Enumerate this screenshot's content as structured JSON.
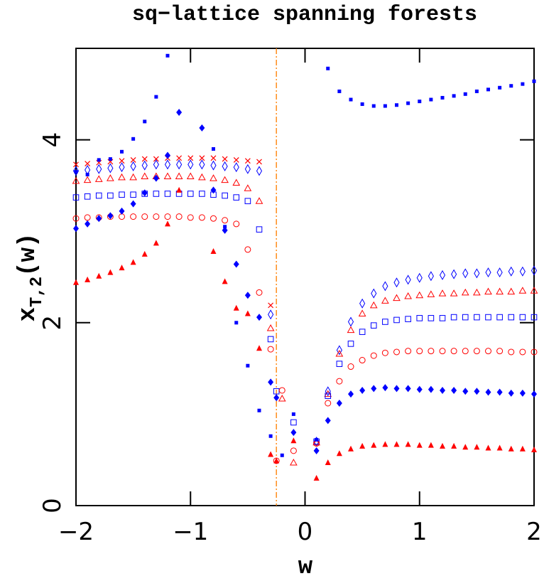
{
  "chart_data": {
    "type": "scatter",
    "title": "sq−lattice spanning forests",
    "xlabel": "w",
    "ylabel": "x",
    "ylabel_sub": "T,2",
    "ylabel_suffix": "(w)",
    "xlim": [
      -2,
      2
    ],
    "ylim": [
      0,
      5
    ],
    "xticks": [
      {
        "value": -2,
        "label": "−2"
      },
      {
        "value": -1,
        "label": "−1"
      },
      0,
      1,
      2
    ],
    "yticks": [
      0,
      2,
      4
    ],
    "vline": -0.25,
    "vline_color": "#ff8c1a",
    "series": [
      {
        "marker": "x",
        "color": "#ff0000",
        "x": [
          -2,
          -1.9,
          -1.8,
          -1.7,
          -1.6,
          -1.5,
          -1.4,
          -1.3,
          -1.2,
          -1.1,
          -1,
          -0.9,
          -0.8,
          -0.7,
          -0.6,
          -0.5,
          -0.4,
          -0.3
        ],
        "values": [
          3.73,
          3.74,
          3.75,
          3.76,
          3.77,
          3.78,
          3.79,
          3.79,
          3.8,
          3.8,
          3.8,
          3.8,
          3.8,
          3.79,
          3.78,
          3.77,
          3.76,
          2.19
        ]
      },
      {
        "marker": "diamond-open",
        "color": "#0000ff",
        "x": [
          -2,
          -1.9,
          -1.8,
          -1.7,
          -1.6,
          -1.5,
          -1.4,
          -1.3,
          -1.2,
          -1.1,
          -1,
          -0.9,
          -0.8,
          -0.7,
          -0.6,
          -0.5,
          -0.4,
          -0.3,
          0.1,
          0.2,
          0.3,
          0.4,
          0.5,
          0.6,
          0.7,
          0.8,
          0.9,
          1,
          1.1,
          1.2,
          1.3,
          1.4,
          1.5,
          1.6,
          1.7,
          1.8,
          1.9,
          2
        ],
        "values": [
          3.66,
          3.67,
          3.68,
          3.69,
          3.7,
          3.71,
          3.72,
          3.73,
          3.73,
          3.73,
          3.73,
          3.73,
          3.72,
          3.71,
          3.7,
          3.68,
          3.66,
          2.09,
          0.7,
          1.25,
          1.7,
          2.01,
          2.21,
          2.32,
          2.4,
          2.44,
          2.47,
          2.49,
          2.51,
          2.52,
          2.53,
          2.54,
          2.54,
          2.55,
          2.55,
          2.56,
          2.56,
          2.57
        ]
      },
      {
        "marker": "triangle-open",
        "color": "#ff0000",
        "x": [
          -2,
          -1.9,
          -1.8,
          -1.7,
          -1.6,
          -1.5,
          -1.4,
          -1.3,
          -1.2,
          -1.1,
          -1,
          -0.9,
          -0.8,
          -0.7,
          -0.6,
          -0.5,
          -0.4,
          -0.3,
          -0.2,
          -0.1,
          0.1,
          0.2,
          0.3,
          0.4,
          0.5,
          0.6,
          0.7,
          0.8,
          0.9,
          1,
          1.1,
          1.2,
          1.3,
          1.4,
          1.5,
          1.6,
          1.7,
          1.8,
          1.9,
          2
        ],
        "values": [
          3.55,
          3.56,
          3.57,
          3.58,
          3.59,
          3.59,
          3.6,
          3.6,
          3.6,
          3.6,
          3.6,
          3.59,
          3.58,
          3.56,
          3.53,
          3.47,
          3.33,
          1.94,
          1.17,
          0.47,
          0.69,
          1.22,
          1.66,
          1.92,
          2.1,
          2.19,
          2.24,
          2.27,
          2.29,
          2.3,
          2.31,
          2.32,
          2.32,
          2.33,
          2.33,
          2.34,
          2.34,
          2.34,
          2.35,
          2.35
        ]
      },
      {
        "marker": "square-open",
        "color": "#0000ff",
        "x": [
          -2,
          -1.9,
          -1.8,
          -1.7,
          -1.6,
          -1.5,
          -1.4,
          -1.3,
          -1.2,
          -1.1,
          -1,
          -0.9,
          -0.8,
          -0.7,
          -0.6,
          -0.5,
          -0.4,
          -0.3,
          -0.25,
          -0.1,
          0.1,
          0.2,
          0.3,
          0.4,
          0.5,
          0.6,
          0.7,
          0.8,
          0.9,
          1,
          1.1,
          1.2,
          1.3,
          1.4,
          1.5,
          1.6,
          1.7,
          1.8,
          1.9,
          2
        ],
        "values": [
          3.37,
          3.38,
          3.39,
          3.39,
          3.4,
          3.4,
          3.41,
          3.41,
          3.41,
          3.41,
          3.41,
          3.41,
          3.4,
          3.39,
          3.37,
          3.33,
          3.02,
          1.82,
          1.25,
          0.91,
          0.7,
          1.2,
          1.55,
          1.77,
          1.9,
          1.97,
          2.01,
          2.03,
          2.04,
          2.05,
          2.05,
          2.05,
          2.06,
          2.06,
          2.06,
          2.06,
          2.06,
          2.06,
          2.06,
          2.06
        ]
      },
      {
        "marker": "circle-open",
        "color": "#ff0000",
        "x": [
          -2,
          -1.9,
          -1.8,
          -1.7,
          -1.6,
          -1.5,
          -1.4,
          -1.3,
          -1.2,
          -1.1,
          -1,
          -0.9,
          -0.8,
          -0.7,
          -0.6,
          -0.5,
          -0.4,
          -0.3,
          -0.25,
          -0.2,
          -0.1,
          0.1,
          0.2,
          0.3,
          0.4,
          0.5,
          0.6,
          0.7,
          0.8,
          0.9,
          1,
          1.1,
          1.2,
          1.3,
          1.4,
          1.5,
          1.6,
          1.7,
          1.8,
          1.9,
          2
        ],
        "values": [
          3.14,
          3.15,
          3.15,
          3.16,
          3.16,
          3.16,
          3.16,
          3.16,
          3.16,
          3.16,
          3.15,
          3.15,
          3.14,
          3.12,
          3.08,
          2.8,
          2.33,
          1.71,
          0.49,
          1.26,
          0.6,
          0.68,
          1.12,
          1.36,
          1.52,
          1.59,
          1.64,
          1.67,
          1.68,
          1.69,
          1.69,
          1.69,
          1.69,
          1.69,
          1.69,
          1.69,
          1.69,
          1.69,
          1.68,
          1.68,
          1.68
        ]
      },
      {
        "marker": "diamond",
        "color": "#0000ff",
        "x": [
          -2,
          -1.9,
          -1.8,
          -1.7,
          -1.6,
          -1.5,
          -1.4,
          -1.3,
          -1.2,
          -1.1,
          -0.9,
          -0.8,
          -0.7,
          -0.6,
          -0.5,
          -0.4,
          -0.3,
          -0.25,
          -0.1,
          0.1,
          0.2,
          0.3,
          0.4,
          0.5,
          0.6,
          0.7,
          0.8,
          0.9,
          1,
          1.1,
          1.2,
          1.3,
          1.4,
          1.5,
          1.6,
          1.7,
          1.8,
          1.9,
          2
        ],
        "values": [
          3.03,
          3.08,
          3.14,
          3.17,
          3.22,
          3.3,
          3.42,
          3.58,
          3.83,
          4.3,
          4.13,
          3.45,
          3.01,
          2.64,
          2.3,
          2.06,
          1.35,
          1.18,
          0.8,
          0.6,
          0.93,
          1.12,
          1.22,
          1.26,
          1.28,
          1.29,
          1.28,
          1.28,
          1.27,
          1.27,
          1.26,
          1.26,
          1.25,
          1.25,
          1.24,
          1.24,
          1.23,
          1.23,
          1.22
        ]
      },
      {
        "marker": "triangle",
        "color": "#ff0000",
        "x": [
          -2,
          -1.9,
          -1.8,
          -1.7,
          -1.6,
          -1.5,
          -1.4,
          -1.3,
          -1.2,
          -1.1,
          -0.8,
          -0.7,
          -0.6,
          -0.5,
          -0.4,
          -0.3,
          -0.25,
          -0.1,
          0.1,
          0.2,
          0.3,
          0.4,
          0.5,
          0.6,
          0.7,
          0.8,
          0.9,
          1,
          1.1,
          1.2,
          1.3,
          1.4,
          1.5,
          1.6,
          1.7,
          1.8,
          1.9,
          2
        ],
        "values": [
          2.44,
          2.47,
          2.51,
          2.55,
          2.6,
          2.66,
          2.75,
          2.87,
          3.08,
          3.45,
          2.78,
          2.45,
          2.16,
          2.1,
          1.72,
          0.56,
          0.49,
          0.71,
          0.3,
          0.47,
          0.57,
          0.62,
          0.65,
          0.66,
          0.67,
          0.67,
          0.67,
          0.66,
          0.66,
          0.65,
          0.65,
          0.64,
          0.64,
          0.63,
          0.63,
          0.62,
          0.62,
          0.61
        ]
      },
      {
        "marker": "square-small",
        "color": "#0000ff",
        "x": [
          -2,
          -1.9,
          -1.8,
          -1.7,
          -1.6,
          -1.5,
          -1.4,
          -1.3,
          -1.2,
          -0.8,
          -0.7,
          -0.6,
          -0.5,
          -0.4,
          -0.3,
          -0.2,
          -0.1,
          0.1,
          0.2,
          0.3,
          0.4,
          0.5,
          0.6,
          0.7,
          0.8,
          0.9,
          1,
          1.1,
          1.2,
          1.3,
          1.4,
          1.5,
          1.6,
          1.7,
          1.8,
          1.9,
          2
        ],
        "values": [
          3.65,
          3.62,
          3.78,
          3.79,
          3.87,
          4.01,
          4.2,
          4.47,
          4.92,
          3.9,
          3.05,
          2.0,
          1.53,
          1.04,
          0.76,
          0.55,
          1.0,
          0.72,
          4.78,
          4.53,
          4.44,
          4.39,
          4.37,
          4.37,
          4.38,
          4.4,
          4.42,
          4.44,
          4.46,
          4.48,
          4.5,
          4.53,
          4.55,
          4.57,
          4.59,
          4.61,
          4.64
        ]
      }
    ]
  }
}
